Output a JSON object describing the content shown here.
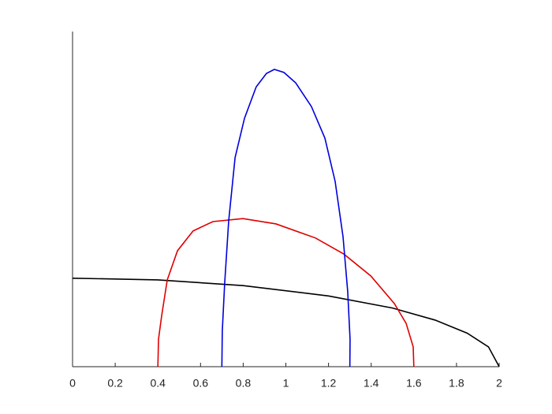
{
  "chart_data": {
    "type": "line",
    "xlim": [
      0,
      2
    ],
    "xticks": [
      0,
      0.2,
      0.4,
      0.6,
      0.8,
      1,
      1.2,
      1.4,
      1.6,
      1.8,
      2
    ],
    "ylim": [
      0,
      1
    ],
    "series": [
      {
        "color": "#000000",
        "x": [
          0,
          0.4,
          0.8,
          1.2,
          1.5,
          1.7,
          1.85,
          1.95,
          2
        ],
        "values": [
          0.264,
          0.259,
          0.242,
          0.211,
          0.175,
          0.139,
          0.1,
          0.059,
          0
        ]
      },
      {
        "color": "#e00000",
        "x": [
          0.4,
          0.403,
          0.418,
          0.444,
          0.492,
          0.565,
          0.658,
          0.799,
          0.954,
          1.139,
          1.272,
          1.398,
          1.509,
          1.564,
          1.597,
          1.6
        ],
        "values": [
          0,
          0.082,
          0.153,
          0.259,
          0.346,
          0.405,
          0.433,
          0.442,
          0.426,
          0.384,
          0.336,
          0.271,
          0.188,
          0.129,
          0.059,
          0
        ]
      },
      {
        "color": "#0000dd",
        "x": [
          0.7,
          0.702,
          0.713,
          0.732,
          0.762,
          0.806,
          0.861,
          0.909,
          0.946,
          0.991,
          1.046,
          1.12,
          1.183,
          1.231,
          1.268,
          1.29,
          1.301,
          1.3
        ],
        "values": [
          0,
          0.106,
          0.247,
          0.435,
          0.624,
          0.741,
          0.835,
          0.875,
          0.887,
          0.878,
          0.847,
          0.776,
          0.682,
          0.553,
          0.388,
          0.224,
          0.082,
          0
        ]
      }
    ]
  }
}
